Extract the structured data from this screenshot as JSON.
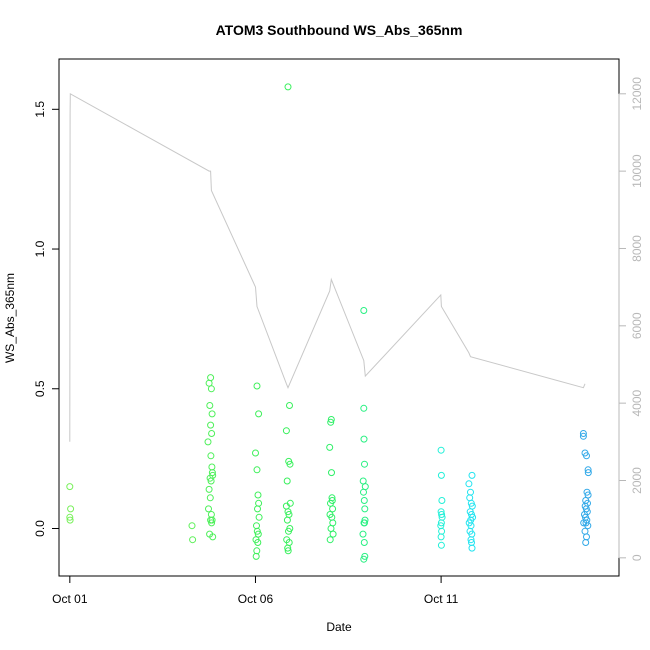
{
  "chart_data": {
    "type": "scatter",
    "title": "ATOM3 Southbound WS_Abs_365nm",
    "xlabel": "Date",
    "ylabel": "WS_Abs_365nm",
    "x_axis": {
      "type": "date",
      "range": [
        "2016-09-30T17:00",
        "2016-10-15T19:00"
      ],
      "ticks": [
        {
          "value": "2016-10-01T00:00",
          "label": "Oct 01"
        },
        {
          "value": "2016-10-06T00:00",
          "label": "Oct 06"
        },
        {
          "value": "2016-10-11T00:00",
          "label": "Oct 11"
        }
      ]
    },
    "y_axis": {
      "range": [
        -0.17,
        1.68
      ],
      "ticks": [
        {
          "value": 0.0,
          "label": "0.0"
        },
        {
          "value": 0.5,
          "label": "0.5"
        },
        {
          "value": 1.0,
          "label": "1.0"
        },
        {
          "value": 1.5,
          "label": "1.5"
        }
      ]
    },
    "y2_axis": {
      "range": [
        -470,
        12900
      ],
      "color": "#b8b8b8",
      "ticks": [
        {
          "value": 0,
          "label": "0"
        },
        {
          "value": 2000,
          "label": "2000"
        },
        {
          "value": 4000,
          "label": "4000"
        },
        {
          "value": 6000,
          "label": "6000"
        },
        {
          "value": 8000,
          "label": "8000"
        },
        {
          "value": 10000,
          "label": "10000"
        },
        {
          "value": 12000,
          "label": "12000"
        }
      ]
    },
    "grid": false,
    "legend": "none",
    "marker": "open-circle",
    "line_color": "#c8c8c8",
    "points": [
      {
        "x": "2016-10-01T00:00",
        "y": 0.15,
        "color": "#78f05a"
      },
      {
        "x": "2016-10-01T00:30",
        "y": 0.07,
        "color": "#78f05a"
      },
      {
        "x": "2016-10-01T00:00",
        "y": 0.04,
        "color": "#78f05a"
      },
      {
        "x": "2016-10-01T00:10",
        "y": 0.03,
        "color": "#78f05a"
      },
      {
        "x": "2016-10-04T07:00",
        "y": 0.01,
        "color": "#5ef05a"
      },
      {
        "x": "2016-10-04T07:20",
        "y": -0.04,
        "color": "#5ef05a"
      },
      {
        "x": "2016-10-04T19:00",
        "y": 0.54,
        "color": "#4ef05a"
      },
      {
        "x": "2016-10-04T18:00",
        "y": 0.52,
        "color": "#4ef05a"
      },
      {
        "x": "2016-10-04T19:30",
        "y": 0.5,
        "color": "#4ef05a"
      },
      {
        "x": "2016-10-04T18:30",
        "y": 0.44,
        "color": "#4ef05a"
      },
      {
        "x": "2016-10-04T20:00",
        "y": 0.41,
        "color": "#4ef05a"
      },
      {
        "x": "2016-10-04T19:00",
        "y": 0.37,
        "color": "#4ef05a"
      },
      {
        "x": "2016-10-04T19:40",
        "y": 0.34,
        "color": "#4ef05a"
      },
      {
        "x": "2016-10-04T17:20",
        "y": 0.31,
        "color": "#4ef05a"
      },
      {
        "x": "2016-10-04T19:10",
        "y": 0.26,
        "color": "#4ef05a"
      },
      {
        "x": "2016-10-04T19:50",
        "y": 0.22,
        "color": "#4ef05a"
      },
      {
        "x": "2016-10-04T20:10",
        "y": 0.2,
        "color": "#4ef05a"
      },
      {
        "x": "2016-10-04T18:40",
        "y": 0.18,
        "color": "#4ef05a"
      },
      {
        "x": "2016-10-04T19:20",
        "y": 0.17,
        "color": "#4ef05a"
      },
      {
        "x": "2016-10-04T20:20",
        "y": 0.19,
        "color": "#4ef05a"
      },
      {
        "x": "2016-10-04T18:00",
        "y": 0.14,
        "color": "#4ef05a"
      },
      {
        "x": "2016-10-04T18:50",
        "y": 0.11,
        "color": "#4ef05a"
      },
      {
        "x": "2016-10-04T17:40",
        "y": 0.07,
        "color": "#4ef05a"
      },
      {
        "x": "2016-10-04T19:30",
        "y": 0.05,
        "color": "#4ef05a"
      },
      {
        "x": "2016-10-04T19:00",
        "y": 0.03,
        "color": "#4ef05a"
      },
      {
        "x": "2016-10-04T19:40",
        "y": 0.02,
        "color": "#4ef05a"
      },
      {
        "x": "2016-10-04T20:00",
        "y": 0.03,
        "color": "#4ef05a"
      },
      {
        "x": "2016-10-04T18:20",
        "y": -0.02,
        "color": "#4ef05a"
      },
      {
        "x": "2016-10-04T20:20",
        "y": -0.03,
        "color": "#4ef05a"
      },
      {
        "x": "2016-10-06T01:00",
        "y": 0.51,
        "color": "#3ef05a"
      },
      {
        "x": "2016-10-06T02:00",
        "y": 0.41,
        "color": "#3ef05a"
      },
      {
        "x": "2016-10-06T00:00",
        "y": 0.27,
        "color": "#3ef05a"
      },
      {
        "x": "2016-10-06T01:00",
        "y": 0.21,
        "color": "#3ef05a"
      },
      {
        "x": "2016-10-06T01:40",
        "y": 0.12,
        "color": "#3ef05a"
      },
      {
        "x": "2016-10-06T02:00",
        "y": 0.09,
        "color": "#3ef05a"
      },
      {
        "x": "2016-10-06T01:20",
        "y": 0.07,
        "color": "#3ef05a"
      },
      {
        "x": "2016-10-06T02:20",
        "y": 0.04,
        "color": "#3ef05a"
      },
      {
        "x": "2016-10-06T00:40",
        "y": 0.01,
        "color": "#3ef05a"
      },
      {
        "x": "2016-10-06T01:10",
        "y": -0.01,
        "color": "#3ef05a"
      },
      {
        "x": "2016-10-06T01:50",
        "y": -0.02,
        "color": "#3ef05a"
      },
      {
        "x": "2016-10-06T00:20",
        "y": -0.04,
        "color": "#3ef05a"
      },
      {
        "x": "2016-10-06T01:30",
        "y": -0.05,
        "color": "#3ef05a"
      },
      {
        "x": "2016-10-06T00:50",
        "y": -0.08,
        "color": "#3ef05a"
      },
      {
        "x": "2016-10-06T00:30",
        "y": -0.1,
        "color": "#3ef05a"
      },
      {
        "x": "2016-10-06T21:00",
        "y": 1.58,
        "color": "#38f05c"
      },
      {
        "x": "2016-10-06T22:00",
        "y": 0.44,
        "color": "#38f05c"
      },
      {
        "x": "2016-10-06T20:00",
        "y": 0.35,
        "color": "#38f05c"
      },
      {
        "x": "2016-10-06T21:30",
        "y": 0.24,
        "color": "#38f05c"
      },
      {
        "x": "2016-10-06T22:20",
        "y": 0.23,
        "color": "#38f05c"
      },
      {
        "x": "2016-10-06T20:30",
        "y": 0.17,
        "color": "#38f05c"
      },
      {
        "x": "2016-10-06T22:30",
        "y": 0.09,
        "color": "#38f05c"
      },
      {
        "x": "2016-10-06T20:00",
        "y": 0.08,
        "color": "#38f05c"
      },
      {
        "x": "2016-10-06T21:00",
        "y": 0.06,
        "color": "#38f05c"
      },
      {
        "x": "2016-10-06T21:40",
        "y": 0.05,
        "color": "#38f05c"
      },
      {
        "x": "2016-10-06T20:40",
        "y": 0.03,
        "color": "#38f05c"
      },
      {
        "x": "2016-10-06T22:10",
        "y": 0.0,
        "color": "#38f05c"
      },
      {
        "x": "2016-10-06T21:20",
        "y": -0.01,
        "color": "#38f05c"
      },
      {
        "x": "2016-10-06T20:10",
        "y": -0.04,
        "color": "#38f05c"
      },
      {
        "x": "2016-10-06T21:50",
        "y": -0.05,
        "color": "#38f05c"
      },
      {
        "x": "2016-10-06T20:50",
        "y": -0.07,
        "color": "#38f05c"
      },
      {
        "x": "2016-10-06T21:10",
        "y": -0.08,
        "color": "#38f05c"
      },
      {
        "x": "2016-10-08T01:00",
        "y": 0.39,
        "color": "#30f068"
      },
      {
        "x": "2016-10-08T00:40",
        "y": 0.38,
        "color": "#30f068"
      },
      {
        "x": "2016-10-08T00:00",
        "y": 0.29,
        "color": "#30f068"
      },
      {
        "x": "2016-10-08T01:10",
        "y": 0.2,
        "color": "#30f068"
      },
      {
        "x": "2016-10-08T01:30",
        "y": 0.11,
        "color": "#30f068"
      },
      {
        "x": "2016-10-08T01:40",
        "y": 0.1,
        "color": "#30f068"
      },
      {
        "x": "2016-10-08T00:30",
        "y": 0.09,
        "color": "#30f068"
      },
      {
        "x": "2016-10-08T01:50",
        "y": 0.07,
        "color": "#30f068"
      },
      {
        "x": "2016-10-08T00:10",
        "y": 0.05,
        "color": "#30f068"
      },
      {
        "x": "2016-10-08T01:20",
        "y": 0.04,
        "color": "#30f068"
      },
      {
        "x": "2016-10-08T02:00",
        "y": 0.02,
        "color": "#30f068"
      },
      {
        "x": "2016-10-08T00:50",
        "y": 0.0,
        "color": "#30f068"
      },
      {
        "x": "2016-10-08T02:10",
        "y": -0.02,
        "color": "#30f068"
      },
      {
        "x": "2016-10-08T00:20",
        "y": -0.04,
        "color": "#30f068"
      },
      {
        "x": "2016-10-08T22:00",
        "y": 0.78,
        "color": "#28f082"
      },
      {
        "x": "2016-10-08T22:00",
        "y": 0.43,
        "color": "#28f082"
      },
      {
        "x": "2016-10-08T22:10",
        "y": 0.32,
        "color": "#28f082"
      },
      {
        "x": "2016-10-08T22:30",
        "y": 0.23,
        "color": "#28f082"
      },
      {
        "x": "2016-10-08T21:40",
        "y": 0.17,
        "color": "#28f082"
      },
      {
        "x": "2016-10-08T23:00",
        "y": 0.15,
        "color": "#28f082"
      },
      {
        "x": "2016-10-08T21:50",
        "y": 0.13,
        "color": "#28f082"
      },
      {
        "x": "2016-10-08T22:20",
        "y": 0.1,
        "color": "#28f082"
      },
      {
        "x": "2016-10-08T22:40",
        "y": 0.07,
        "color": "#28f082"
      },
      {
        "x": "2016-10-08T22:50",
        "y": 0.03,
        "color": "#28f082"
      },
      {
        "x": "2016-10-08T22:10",
        "y": 0.02,
        "color": "#28f082"
      },
      {
        "x": "2016-10-08T22:30",
        "y": 0.02,
        "color": "#28f082"
      },
      {
        "x": "2016-10-08T21:30",
        "y": -0.02,
        "color": "#28f082"
      },
      {
        "x": "2016-10-08T22:20",
        "y": -0.05,
        "color": "#28f082"
      },
      {
        "x": "2016-10-08T22:40",
        "y": -0.1,
        "color": "#28f082"
      },
      {
        "x": "2016-10-08T22:00",
        "y": -0.11,
        "color": "#28f082"
      },
      {
        "x": "2016-10-11T00:00",
        "y": 0.28,
        "color": "#22f0d8"
      },
      {
        "x": "2016-10-11T00:10",
        "y": 0.19,
        "color": "#22f0d8"
      },
      {
        "x": "2016-10-11T00:30",
        "y": 0.1,
        "color": "#22f0d8"
      },
      {
        "x": "2016-10-11T00:00",
        "y": 0.06,
        "color": "#22f0d8"
      },
      {
        "x": "2016-10-11T00:20",
        "y": 0.05,
        "color": "#22f0d8"
      },
      {
        "x": "2016-10-11T00:40",
        "y": 0.04,
        "color": "#22f0d8"
      },
      {
        "x": "2016-10-11T00:10",
        "y": 0.02,
        "color": "#22f0d8"
      },
      {
        "x": "2016-10-10T23:50",
        "y": 0.01,
        "color": "#22f0d8"
      },
      {
        "x": "2016-10-11T00:20",
        "y": -0.01,
        "color": "#22f0d8"
      },
      {
        "x": "2016-10-11T00:00",
        "y": -0.03,
        "color": "#22f0d8"
      },
      {
        "x": "2016-10-11T00:10",
        "y": -0.06,
        "color": "#22f0d8"
      },
      {
        "x": "2016-10-11T20:00",
        "y": 0.19,
        "color": "#22e4f0"
      },
      {
        "x": "2016-10-11T18:00",
        "y": 0.16,
        "color": "#22e4f0"
      },
      {
        "x": "2016-10-11T19:00",
        "y": 0.13,
        "color": "#22e4f0"
      },
      {
        "x": "2016-10-11T18:30",
        "y": 0.11,
        "color": "#22e4f0"
      },
      {
        "x": "2016-10-11T19:30",
        "y": 0.09,
        "color": "#22e4f0"
      },
      {
        "x": "2016-10-11T20:10",
        "y": 0.08,
        "color": "#22e4f0"
      },
      {
        "x": "2016-10-11T18:50",
        "y": 0.06,
        "color": "#22e4f0"
      },
      {
        "x": "2016-10-11T19:40",
        "y": 0.05,
        "color": "#22e4f0"
      },
      {
        "x": "2016-10-11T20:20",
        "y": 0.04,
        "color": "#22e4f0"
      },
      {
        "x": "2016-10-11T19:10",
        "y": 0.03,
        "color": "#22e4f0"
      },
      {
        "x": "2016-10-11T18:10",
        "y": 0.02,
        "color": "#22e4f0"
      },
      {
        "x": "2016-10-11T19:20",
        "y": 0.01,
        "color": "#22e4f0"
      },
      {
        "x": "2016-10-11T18:40",
        "y": -0.01,
        "color": "#22e4f0"
      },
      {
        "x": "2016-10-11T19:50",
        "y": -0.02,
        "color": "#22e4f0"
      },
      {
        "x": "2016-10-11T19:20",
        "y": -0.04,
        "color": "#22e4f0"
      },
      {
        "x": "2016-10-11T19:40",
        "y": -0.05,
        "color": "#22e4f0"
      },
      {
        "x": "2016-10-11T20:00",
        "y": -0.07,
        "color": "#22e4f0"
      },
      {
        "x": "2016-10-14T20:00",
        "y": 0.34,
        "color": "#30a8e8"
      },
      {
        "x": "2016-10-14T20:00",
        "y": 0.33,
        "color": "#30a8e8"
      },
      {
        "x": "2016-10-14T22:00",
        "y": 0.26,
        "color": "#30a8e8"
      },
      {
        "x": "2016-10-14T21:00",
        "y": 0.27,
        "color": "#30a8e8"
      },
      {
        "x": "2016-10-14T23:00",
        "y": 0.21,
        "color": "#30a8e8"
      },
      {
        "x": "2016-10-14T23:10",
        "y": 0.2,
        "color": "#30a8e8"
      },
      {
        "x": "2016-10-14T22:20",
        "y": 0.13,
        "color": "#30a8e8"
      },
      {
        "x": "2016-10-14T23:00",
        "y": 0.12,
        "color": "#30a8e8"
      },
      {
        "x": "2016-10-14T21:30",
        "y": 0.1,
        "color": "#30a8e8"
      },
      {
        "x": "2016-10-14T22:40",
        "y": 0.09,
        "color": "#30a8e8"
      },
      {
        "x": "2016-10-14T21:10",
        "y": 0.08,
        "color": "#30a8e8"
      },
      {
        "x": "2016-10-14T21:50",
        "y": 0.07,
        "color": "#30a8e8"
      },
      {
        "x": "2016-10-14T22:30",
        "y": 0.06,
        "color": "#30a8e8"
      },
      {
        "x": "2016-10-14T20:40",
        "y": 0.05,
        "color": "#30a8e8"
      },
      {
        "x": "2016-10-14T21:20",
        "y": 0.04,
        "color": "#30a8e8"
      },
      {
        "x": "2016-10-14T22:10",
        "y": 0.03,
        "color": "#30a8e8"
      },
      {
        "x": "2016-10-14T20:10",
        "y": 0.02,
        "color": "#30a8e8"
      },
      {
        "x": "2016-10-14T21:40",
        "y": 0.02,
        "color": "#30a8e8"
      },
      {
        "x": "2016-10-14T22:50",
        "y": 0.01,
        "color": "#30a8e8"
      },
      {
        "x": "2016-10-14T21:00",
        "y": -0.01,
        "color": "#30a8e8"
      },
      {
        "x": "2016-10-14T22:00",
        "y": -0.03,
        "color": "#30a8e8"
      },
      {
        "x": "2016-10-14T21:30",
        "y": -0.05,
        "color": "#30a8e8"
      }
    ],
    "line_series": [
      [
        "2016-10-01T00:00",
        3000
      ],
      [
        "2016-10-01T00:10",
        11500
      ],
      [
        "2016-10-01T00:20",
        12000
      ],
      [
        "2016-10-04T18:00",
        10000
      ],
      [
        "2016-10-04T19:00",
        10000
      ],
      [
        "2016-10-04T19:30",
        9500
      ],
      [
        "2016-10-06T00:00",
        7000
      ],
      [
        "2016-10-06T01:00",
        6500
      ],
      [
        "2016-10-06T20:00",
        4500
      ],
      [
        "2016-10-06T21:00",
        4400
      ],
      [
        "2016-10-08T00:00",
        6900
      ],
      [
        "2016-10-08T01:00",
        7200
      ],
      [
        "2016-10-08T22:00",
        5100
      ],
      [
        "2016-10-08T23:00",
        4700
      ],
      [
        "2016-10-10T23:50",
        6800
      ],
      [
        "2016-10-11T00:10",
        6500
      ],
      [
        "2016-10-11T18:00",
        5300
      ],
      [
        "2016-10-11T19:00",
        5200
      ],
      [
        "2016-10-14T20:00",
        4400
      ],
      [
        "2016-10-14T21:00",
        4500
      ]
    ]
  }
}
